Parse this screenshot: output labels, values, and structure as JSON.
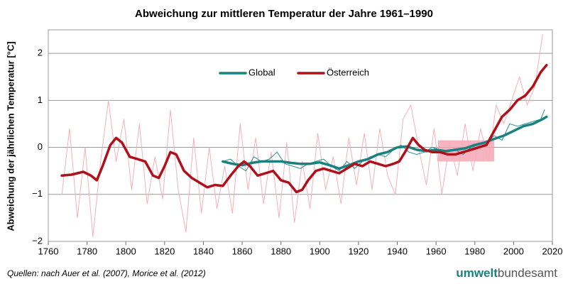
{
  "chart_data": {
    "type": "line",
    "title": "Abweichung zur mittleren Temperatur der Jahre 1961–1990",
    "y_label": "Abweichung der jährlichen Temperatur [°C]",
    "source": "Quellen: nach Auer et al. (2007), Morice et al. (2012)",
    "brand": [
      "umwelt",
      "bundesamt"
    ],
    "xlim": [
      1760,
      2020
    ],
    "xticks": [
      1760,
      1780,
      1800,
      1820,
      1840,
      1860,
      1880,
      1900,
      1920,
      1940,
      1960,
      1980,
      2000,
      2020
    ],
    "ylim": [
      -2,
      2.5
    ],
    "yticks": [
      {
        "value": -2,
        "label": "−2"
      },
      {
        "value": -1,
        "label": "−1"
      },
      0,
      1,
      2
    ],
    "grid": true,
    "legend": "top-center",
    "reference_period": {
      "x": [
        1961,
        1990
      ],
      "y": [
        -0.3,
        0.15
      ],
      "color": "#f4a0b0"
    },
    "series": [
      {
        "color": "#f7b0b4",
        "width": 1,
        "legend": false,
        "x": [
          1767,
          1771,
          1775,
          1779,
          1783,
          1787,
          1791,
          1795,
          1799,
          1803,
          1807,
          1811,
          1815,
          1819,
          1823,
          1827,
          1831,
          1835,
          1839,
          1843,
          1847,
          1851,
          1855,
          1859,
          1863,
          1867,
          1871,
          1875,
          1879,
          1883,
          1887,
          1891,
          1895,
          1899,
          1903,
          1907,
          1911,
          1915,
          1919,
          1923,
          1927,
          1931,
          1935,
          1939,
          1943,
          1947,
          1951,
          1955,
          1959,
          1963,
          1967,
          1971,
          1975,
          1979,
          1983,
          1987,
          1991,
          1995,
          1999,
          2003,
          2007,
          2011,
          2015
        ],
        "values": [
          -1.0,
          0.4,
          -1.5,
          0.0,
          -1.9,
          -0.3,
          1.0,
          -0.3,
          0.6,
          -0.9,
          0.5,
          -1.2,
          -0.2,
          -1.1,
          0.8,
          -0.9,
          -1.8,
          0.2,
          -1.4,
          0.0,
          -1.3,
          -0.4,
          -1.4,
          0.5,
          -0.9,
          0.2,
          -1.2,
          -0.1,
          -1.5,
          0.1,
          -1.6,
          -0.3,
          -1.3,
          0.3,
          -0.9,
          -0.2,
          -1.2,
          0.2,
          -0.8,
          0.3,
          -0.9,
          0.4,
          -0.6,
          -1.0,
          0.6,
          0.9,
          0.0,
          -0.8,
          0.4,
          -1.0,
          0.1,
          -0.6,
          0.5,
          -0.5,
          0.4,
          -0.3,
          0.9,
          0.5,
          1.0,
          1.5,
          0.9,
          1.3,
          2.4
        ]
      },
      {
        "color": "#2a9090",
        "width": 1,
        "legend": false,
        "x": [
          1850,
          1854,
          1858,
          1862,
          1866,
          1870,
          1874,
          1878,
          1882,
          1886,
          1890,
          1894,
          1898,
          1902,
          1906,
          1910,
          1914,
          1918,
          1922,
          1926,
          1930,
          1934,
          1938,
          1942,
          1946,
          1950,
          1954,
          1958,
          1962,
          1966,
          1970,
          1974,
          1978,
          1982,
          1986,
          1990,
          1994,
          1998,
          2002,
          2006,
          2010,
          2014,
          2016
        ],
        "values": [
          -0.3,
          -0.25,
          -0.4,
          -0.5,
          -0.2,
          -0.3,
          -0.25,
          -0.1,
          -0.35,
          -0.4,
          -0.45,
          -0.35,
          -0.3,
          -0.25,
          -0.4,
          -0.5,
          -0.3,
          -0.45,
          -0.3,
          -0.2,
          -0.15,
          -0.2,
          -0.05,
          0.05,
          -0.1,
          -0.15,
          -0.1,
          0.0,
          -0.05,
          -0.1,
          -0.05,
          -0.15,
          0.0,
          0.05,
          0.1,
          0.25,
          0.15,
          0.5,
          0.45,
          0.5,
          0.55,
          0.6,
          0.8
        ]
      },
      {
        "name": "Global",
        "color": "#1a8080",
        "width": 3.5,
        "x": [
          1850,
          1855,
          1860,
          1865,
          1870,
          1875,
          1880,
          1885,
          1890,
          1895,
          1900,
          1905,
          1910,
          1915,
          1920,
          1925,
          1930,
          1935,
          1940,
          1945,
          1950,
          1955,
          1960,
          1965,
          1970,
          1975,
          1980,
          1985,
          1990,
          1995,
          2000,
          2005,
          2010,
          2015,
          2017
        ],
        "values": [
          -0.3,
          -0.35,
          -0.38,
          -0.33,
          -0.3,
          -0.3,
          -0.3,
          -0.33,
          -0.35,
          -0.35,
          -0.32,
          -0.38,
          -0.45,
          -0.38,
          -0.3,
          -0.25,
          -0.15,
          -0.1,
          0.0,
          0.02,
          -0.05,
          -0.08,
          -0.05,
          -0.08,
          -0.05,
          -0.02,
          0.05,
          0.1,
          0.18,
          0.25,
          0.35,
          0.45,
          0.5,
          0.6,
          0.65
        ]
      },
      {
        "name": "Österreich",
        "color": "#b0101a",
        "width": 3.5,
        "x": [
          1767,
          1772,
          1778,
          1782,
          1785,
          1788,
          1792,
          1795,
          1798,
          1802,
          1806,
          1810,
          1814,
          1817,
          1820,
          1823,
          1826,
          1830,
          1834,
          1838,
          1842,
          1846,
          1850,
          1854,
          1858,
          1861,
          1864,
          1868,
          1872,
          1876,
          1880,
          1884,
          1888,
          1891,
          1894,
          1898,
          1902,
          1906,
          1910,
          1914,
          1918,
          1922,
          1926,
          1930,
          1934,
          1938,
          1941,
          1944,
          1948,
          1951,
          1954,
          1958,
          1962,
          1966,
          1970,
          1974,
          1978,
          1982,
          1986,
          1990,
          1994,
          1998,
          2002,
          2006,
          2010,
          2014,
          2017
        ],
        "values": [
          -0.6,
          -0.58,
          -0.52,
          -0.6,
          -0.7,
          -0.4,
          0.05,
          0.2,
          0.1,
          -0.2,
          -0.25,
          -0.3,
          -0.6,
          -0.65,
          -0.4,
          -0.1,
          -0.15,
          -0.5,
          -0.65,
          -0.75,
          -0.85,
          -0.8,
          -0.82,
          -0.6,
          -0.4,
          -0.3,
          -0.4,
          -0.6,
          -0.55,
          -0.5,
          -0.7,
          -0.75,
          -0.95,
          -0.9,
          -0.7,
          -0.5,
          -0.45,
          -0.5,
          -0.55,
          -0.45,
          -0.35,
          -0.4,
          -0.3,
          -0.35,
          -0.4,
          -0.35,
          -0.3,
          -0.1,
          0.2,
          0.05,
          -0.05,
          -0.1,
          -0.1,
          -0.15,
          -0.15,
          -0.1,
          -0.05,
          0.0,
          0.05,
          0.35,
          0.65,
          0.8,
          1.0,
          1.1,
          1.3,
          1.6,
          1.75
        ]
      }
    ]
  }
}
